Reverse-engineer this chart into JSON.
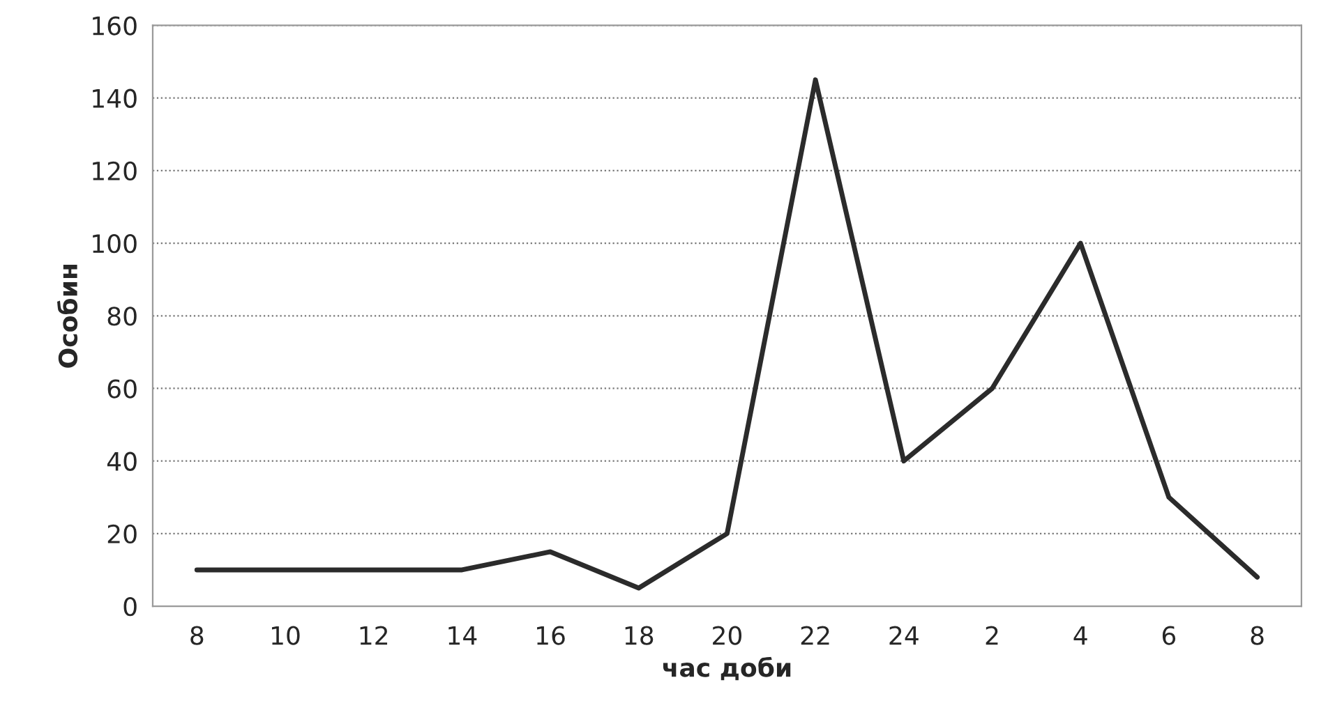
{
  "chart_data": {
    "type": "line",
    "xlabel": "час доби",
    "ylabel": "Особин",
    "categories": [
      "8",
      "10",
      "12",
      "14",
      "16",
      "18",
      "20",
      "22",
      "24",
      "2",
      "4",
      "6",
      "8"
    ],
    "series": [
      {
        "color": "#2b2b2b",
        "values": [
          10,
          10,
          10,
          10,
          15,
          5,
          20,
          145,
          40,
          60,
          100,
          30,
          8
        ]
      }
    ],
    "ylim": [
      0,
      160
    ],
    "yticks": [
      0,
      20,
      40,
      60,
      80,
      100,
      120,
      140,
      160
    ],
    "grid": "y",
    "legend": false,
    "marker": "none",
    "line_style": "solid"
  }
}
